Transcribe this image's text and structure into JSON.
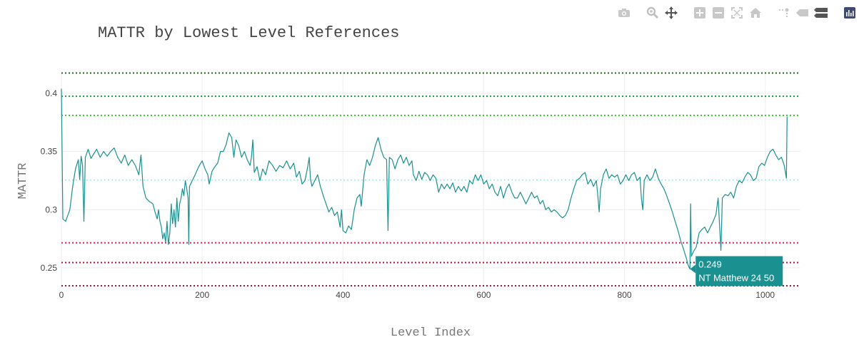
{
  "modebar": {
    "buttons": [
      {
        "icon": "camera-icon"
      },
      {
        "icon": "zoom-icon"
      },
      {
        "icon": "pan-icon"
      },
      {
        "icon": "zoom-in-icon"
      },
      {
        "icon": "zoom-out-icon"
      },
      {
        "icon": "autoscale-icon"
      },
      {
        "icon": "reset-axes-icon"
      },
      {
        "icon": "spike-lines-icon"
      },
      {
        "icon": "hover-closest-icon"
      },
      {
        "icon": "hover-compare-icon"
      },
      {
        "icon": "plotly-logo-icon"
      }
    ]
  },
  "chart_data": {
    "type": "line",
    "title": "MATTR by Lowest Level References",
    "xlabel": "Level Index",
    "ylabel": "MATTR",
    "xlim": [
      0,
      1050
    ],
    "ylim": [
      0.234,
      0.419
    ],
    "x_ticks": [
      0,
      200,
      400,
      600,
      800,
      1000
    ],
    "x_tick_labels": [
      "0",
      "200",
      "400",
      "600",
      "800",
      "1000"
    ],
    "y_ticks": [
      0.25,
      0.3,
      0.35,
      0.4
    ],
    "y_tick_labels": [
      "0.25",
      "0.3",
      "0.35",
      "0.4"
    ],
    "grid": true,
    "line_color": "#1a9090",
    "reference_lines": [
      {
        "y": 0.4175,
        "color": "#1e6b1e",
        "style": "dotted"
      },
      {
        "y": 0.3975,
        "color": "#1a9a3a",
        "style": "dotted"
      },
      {
        "y": 0.381,
        "color": "#33cc33",
        "style": "dotted"
      },
      {
        "y": 0.3255,
        "color": "#a6ecf5",
        "style": "dotted"
      },
      {
        "y": 0.2715,
        "color": "#e0234f",
        "style": "dotted"
      },
      {
        "y": 0.2545,
        "color": "#b0103a",
        "style": "dotted"
      },
      {
        "y": 0.2345,
        "color": "#8a1030",
        "style": "dotted"
      }
    ],
    "series": [
      {
        "points": [
          [
            0,
            0.404
          ],
          [
            2,
            0.292
          ],
          [
            6,
            0.29
          ],
          [
            12,
            0.3
          ],
          [
            16,
            0.32
          ],
          [
            20,
            0.335
          ],
          [
            24,
            0.343
          ],
          [
            26,
            0.326
          ],
          [
            28,
            0.346
          ],
          [
            30,
            0.338
          ],
          [
            32,
            0.29
          ],
          [
            34,
            0.345
          ],
          [
            38,
            0.352
          ],
          [
            42,
            0.344
          ],
          [
            46,
            0.348
          ],
          [
            50,
            0.352
          ],
          [
            55,
            0.345
          ],
          [
            60,
            0.35
          ],
          [
            65,
            0.346
          ],
          [
            70,
            0.35
          ],
          [
            75,
            0.353
          ],
          [
            80,
            0.345
          ],
          [
            85,
            0.34
          ],
          [
            90,
            0.347
          ],
          [
            95,
            0.338
          ],
          [
            100,
            0.343
          ],
          [
            105,
            0.338
          ],
          [
            110,
            0.33
          ],
          [
            113,
            0.347
          ],
          [
            116,
            0.32
          ],
          [
            120,
            0.31
          ],
          [
            125,
            0.307
          ],
          [
            130,
            0.305
          ],
          [
            133,
            0.298
          ],
          [
            136,
            0.292
          ],
          [
            138,
            0.3
          ],
          [
            140,
            0.29
          ],
          [
            142,
            0.285
          ],
          [
            144,
            0.275
          ],
          [
            146,
            0.28
          ],
          [
            148,
            0.272
          ],
          [
            150,
            0.29
          ],
          [
            152,
            0.27
          ],
          [
            154,
            0.28
          ],
          [
            156,
            0.305
          ],
          [
            158,
            0.288
          ],
          [
            160,
            0.3
          ],
          [
            162,
            0.285
          ],
          [
            164,
            0.31
          ],
          [
            166,
            0.29
          ],
          [
            168,
            0.305
          ],
          [
            170,
            0.31
          ],
          [
            172,
            0.318
          ],
          [
            174,
            0.312
          ],
          [
            176,
            0.325
          ],
          [
            178,
            0.318
          ],
          [
            180,
            0.31
          ],
          [
            181,
            0.27
          ],
          [
            182,
            0.32
          ],
          [
            186,
            0.325
          ],
          [
            190,
            0.33
          ],
          [
            195,
            0.337
          ],
          [
            200,
            0.342
          ],
          [
            204,
            0.335
          ],
          [
            208,
            0.33
          ],
          [
            210,
            0.322
          ],
          [
            214,
            0.333
          ],
          [
            218,
            0.337
          ],
          [
            222,
            0.34
          ],
          [
            226,
            0.35
          ],
          [
            230,
            0.35
          ],
          [
            234,
            0.356
          ],
          [
            238,
            0.366
          ],
          [
            242,
            0.362
          ],
          [
            245,
            0.345
          ],
          [
            248,
            0.36
          ],
          [
            252,
            0.355
          ],
          [
            256,
            0.345
          ],
          [
            260,
            0.35
          ],
          [
            264,
            0.343
          ],
          [
            268,
            0.338
          ],
          [
            270,
            0.345
          ],
          [
            272,
            0.36
          ],
          [
            274,
            0.332
          ],
          [
            278,
            0.337
          ],
          [
            282,
            0.325
          ],
          [
            286,
            0.335
          ],
          [
            290,
            0.33
          ],
          [
            295,
            0.342
          ],
          [
            300,
            0.338
          ],
          [
            305,
            0.333
          ],
          [
            310,
            0.338
          ],
          [
            315,
            0.336
          ],
          [
            320,
            0.342
          ],
          [
            325,
            0.335
          ],
          [
            330,
            0.34
          ],
          [
            334,
            0.328
          ],
          [
            338,
            0.333
          ],
          [
            342,
            0.322
          ],
          [
            346,
            0.325
          ],
          [
            350,
            0.337
          ],
          [
            352,
            0.345
          ],
          [
            354,
            0.326
          ],
          [
            356,
            0.32
          ],
          [
            360,
            0.325
          ],
          [
            364,
            0.33
          ],
          [
            368,
            0.32
          ],
          [
            372,
            0.312
          ],
          [
            376,
            0.305
          ],
          [
            380,
            0.298
          ],
          [
            384,
            0.302
          ],
          [
            388,
            0.295
          ],
          [
            392,
            0.298
          ],
          [
            396,
            0.285
          ],
          [
            398,
            0.3
          ],
          [
            400,
            0.282
          ],
          [
            404,
            0.28
          ],
          [
            408,
            0.286
          ],
          [
            412,
            0.283
          ],
          [
            416,
            0.3
          ],
          [
            420,
            0.31
          ],
          [
            424,
            0.313
          ],
          [
            426,
            0.303
          ],
          [
            430,
            0.33
          ],
          [
            434,
            0.343
          ],
          [
            438,
            0.338
          ],
          [
            442,
            0.345
          ],
          [
            446,
            0.355
          ],
          [
            450,
            0.362
          ],
          [
            454,
            0.352
          ],
          [
            458,
            0.345
          ],
          [
            462,
            0.343
          ],
          [
            464,
            0.282
          ],
          [
            466,
            0.345
          ],
          [
            470,
            0.343
          ],
          [
            474,
            0.335
          ],
          [
            478,
            0.343
          ],
          [
            482,
            0.347
          ],
          [
            486,
            0.34
          ],
          [
            490,
            0.345
          ],
          [
            494,
            0.338
          ],
          [
            498,
            0.342
          ],
          [
            500,
            0.33
          ],
          [
            504,
            0.325
          ],
          [
            508,
            0.333
          ],
          [
            512,
            0.326
          ],
          [
            516,
            0.332
          ],
          [
            520,
            0.33
          ],
          [
            524,
            0.325
          ],
          [
            528,
            0.33
          ],
          [
            532,
            0.327
          ],
          [
            536,
            0.315
          ],
          [
            540,
            0.322
          ],
          [
            544,
            0.318
          ],
          [
            548,
            0.322
          ],
          [
            552,
            0.318
          ],
          [
            556,
            0.323
          ],
          [
            560,
            0.315
          ],
          [
            564,
            0.32
          ],
          [
            568,
            0.316
          ],
          [
            572,
            0.32
          ],
          [
            576,
            0.315
          ],
          [
            580,
            0.325
          ],
          [
            584,
            0.322
          ],
          [
            588,
            0.33
          ],
          [
            592,
            0.325
          ],
          [
            596,
            0.33
          ],
          [
            600,
            0.322
          ],
          [
            604,
            0.325
          ],
          [
            608,
            0.318
          ],
          [
            612,
            0.322
          ],
          [
            616,
            0.315
          ],
          [
            620,
            0.312
          ],
          [
            624,
            0.32
          ],
          [
            628,
            0.31
          ],
          [
            632,
            0.318
          ],
          [
            636,
            0.322
          ],
          [
            640,
            0.315
          ],
          [
            644,
            0.31
          ],
          [
            648,
            0.31
          ],
          [
            652,
            0.315
          ],
          [
            656,
            0.31
          ],
          [
            660,
            0.305
          ],
          [
            664,
            0.31
          ],
          [
            668,
            0.315
          ],
          [
            672,
            0.31
          ],
          [
            676,
            0.312
          ],
          [
            680,
            0.305
          ],
          [
            684,
            0.308
          ],
          [
            688,
            0.3
          ],
          [
            692,
            0.302
          ],
          [
            696,
            0.298
          ],
          [
            700,
            0.3
          ],
          [
            704,
            0.298
          ],
          [
            708,
            0.295
          ],
          [
            712,
            0.293
          ],
          [
            716,
            0.295
          ],
          [
            720,
            0.3
          ],
          [
            724,
            0.31
          ],
          [
            728,
            0.318
          ],
          [
            732,
            0.325
          ],
          [
            736,
            0.327
          ],
          [
            740,
            0.33
          ],
          [
            744,
            0.332
          ],
          [
            748,
            0.322
          ],
          [
            752,
            0.326
          ],
          [
            756,
            0.32
          ],
          [
            760,
            0.325
          ],
          [
            762,
            0.313
          ],
          [
            764,
            0.298
          ],
          [
            766,
            0.318
          ],
          [
            770,
            0.33
          ],
          [
            774,
            0.335
          ],
          [
            778,
            0.327
          ],
          [
            782,
            0.33
          ],
          [
            786,
            0.328
          ],
          [
            790,
            0.33
          ],
          [
            794,
            0.322
          ],
          [
            798,
            0.325
          ],
          [
            802,
            0.33
          ],
          [
            806,
            0.325
          ],
          [
            810,
            0.33
          ],
          [
            814,
            0.332
          ],
          [
            818,
            0.325
          ],
          [
            822,
            0.328
          ],
          [
            824,
            0.31
          ],
          [
            826,
            0.3
          ],
          [
            828,
            0.325
          ],
          [
            832,
            0.33
          ],
          [
            836,
            0.325
          ],
          [
            840,
            0.328
          ],
          [
            844,
            0.335
          ],
          [
            848,
            0.327
          ],
          [
            852,
            0.322
          ],
          [
            856,
            0.318
          ],
          [
            860,
            0.312
          ],
          [
            864,
            0.305
          ],
          [
            868,
            0.298
          ],
          [
            872,
            0.29
          ],
          [
            876,
            0.282
          ],
          [
            880,
            0.273
          ],
          [
            884,
            0.266
          ],
          [
            886,
            0.262
          ],
          [
            888,
            0.258
          ],
          [
            890,
            0.253
          ],
          [
            892,
            0.25
          ],
          [
            893,
            0.249
          ],
          [
            894,
            0.305
          ],
          [
            895,
            0.26
          ],
          [
            898,
            0.264
          ],
          [
            902,
            0.268
          ],
          [
            906,
            0.28
          ],
          [
            910,
            0.283
          ],
          [
            914,
            0.285
          ],
          [
            918,
            0.28
          ],
          [
            922,
            0.285
          ],
          [
            926,
            0.29
          ],
          [
            930,
            0.296
          ],
          [
            933,
            0.31
          ],
          [
            935,
            0.288
          ],
          [
            937,
            0.265
          ],
          [
            939,
            0.31
          ],
          [
            943,
            0.313
          ],
          [
            947,
            0.312
          ],
          [
            951,
            0.315
          ],
          [
            955,
            0.31
          ],
          [
            959,
            0.32
          ],
          [
            963,
            0.325
          ],
          [
            967,
            0.323
          ],
          [
            971,
            0.328
          ],
          [
            975,
            0.332
          ],
          [
            979,
            0.33
          ],
          [
            983,
            0.325
          ],
          [
            987,
            0.327
          ],
          [
            991,
            0.337
          ],
          [
            995,
            0.34
          ],
          [
            999,
            0.338
          ],
          [
            1003,
            0.345
          ],
          [
            1007,
            0.35
          ],
          [
            1011,
            0.352
          ],
          [
            1015,
            0.347
          ],
          [
            1019,
            0.343
          ],
          [
            1023,
            0.345
          ],
          [
            1027,
            0.338
          ],
          [
            1030,
            0.327
          ],
          [
            1031,
            0.38
          ]
        ]
      }
    ],
    "hover_label": {
      "x": 893,
      "y": 0.249,
      "value_text": "0.249",
      "ref_text": "NT Matthew 24 50",
      "color": "#1a9090"
    }
  }
}
